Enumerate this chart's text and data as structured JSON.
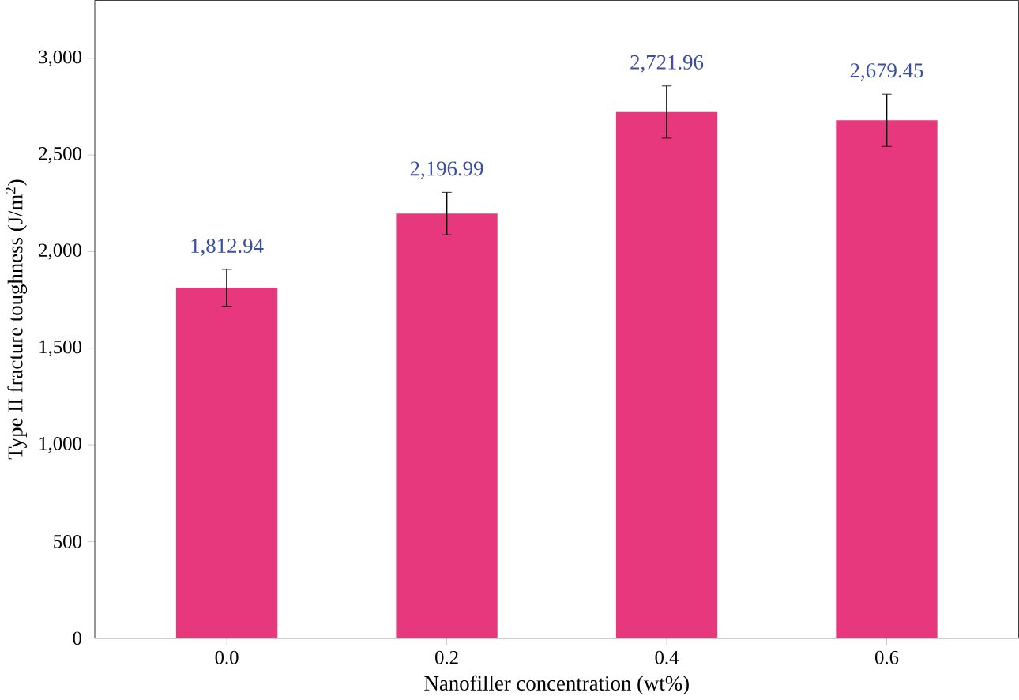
{
  "chart_data": {
    "type": "bar",
    "xlabel": "Nanofiller concentration (wt%)",
    "ylabel": "Type II fracture toughness (J/m$^{2}$)",
    "categories": [
      "0.0",
      "0.2",
      "0.4",
      "0.6"
    ],
    "values": [
      1812.94,
      2196.99,
      2721.96,
      2679.45
    ],
    "value_labels": [
      "1,812.94",
      "2,196.99",
      "2,721.96",
      "2,679.45"
    ],
    "errors": [
      95,
      110,
      135,
      135
    ],
    "color": "#e8387d",
    "ylim": [
      0,
      3300
    ],
    "yticks": [
      {
        "value": 0,
        "label": "0"
      },
      {
        "value": 500,
        "label": "500"
      },
      {
        "value": 1000,
        "label": "1,000"
      },
      {
        "value": 1500,
        "label": "1,500"
      },
      {
        "value": 2000,
        "label": "2,000"
      },
      {
        "value": 2500,
        "label": "2,500"
      },
      {
        "value": 3000,
        "label": "3,000"
      }
    ],
    "grid": false
  }
}
